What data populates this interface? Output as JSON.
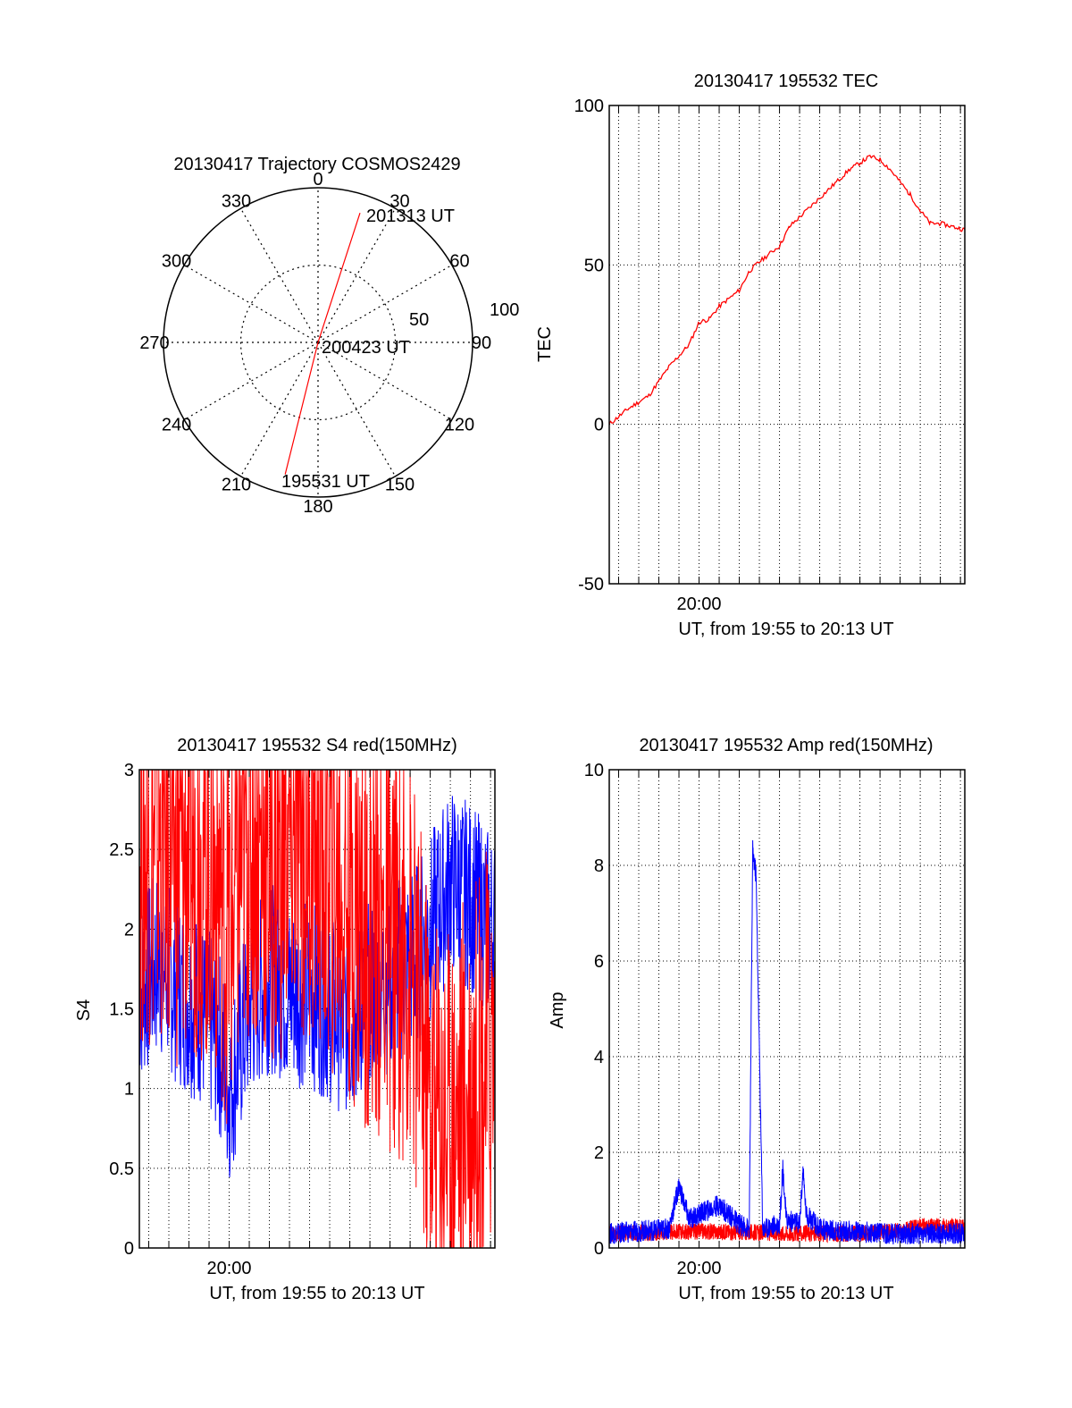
{
  "colors": {
    "red": "#ff0000",
    "blue": "#0000ff",
    "axis": "#000000",
    "grid": "#000000"
  },
  "polar": {
    "title": "20130417 Trajectory COSMOS2429",
    "angle_labels": [
      "0",
      "30",
      "60",
      "90",
      "120",
      "150",
      "180",
      "210",
      "240",
      "270",
      "300",
      "330"
    ],
    "radial_labels": [
      "50",
      "100"
    ],
    "start_label": "195531 UT",
    "mid_label": "200423 UT",
    "end_label": "201313 UT",
    "trajectory": [
      {
        "az": 194,
        "r": 88
      },
      {
        "az": 0,
        "r": 0
      },
      {
        "az": 18,
        "r": 88
      }
    ]
  },
  "chart_data": [
    {
      "id": "tec",
      "type": "line",
      "title": "20130417 195532 TEC",
      "xlabel": "UT, from 19:55 to 20:13 UT",
      "ylabel": "TEC",
      "xlim": [
        "19:55:32",
        "20:13:13"
      ],
      "ylim": [
        -50,
        100
      ],
      "yticks": [
        "100",
        "50",
        "0",
        "-50"
      ],
      "xticks": [
        "20:00"
      ],
      "grid": true,
      "series": [
        {
          "color": "red",
          "x": [
            "19:55:32",
            "19:56:30",
            "19:57:30",
            "19:58:30",
            "19:59:30",
            "20:00:00",
            "20:00:30",
            "20:01:00",
            "20:02:00",
            "20:02:30",
            "20:03:00",
            "20:04:00",
            "20:04:30",
            "20:05:30",
            "20:06:30",
            "20:07:30",
            "20:08:30",
            "20:09:00",
            "20:09:30",
            "20:10:00",
            "20:10:30",
            "20:11:00",
            "20:11:30",
            "20:12:00",
            "20:13:13"
          ],
          "values": [
            0,
            5,
            9,
            18,
            25,
            32,
            33,
            37,
            42,
            48,
            51,
            56,
            62,
            68,
            74,
            80,
            84,
            83,
            80,
            76,
            72,
            67,
            63,
            63,
            61
          ]
        }
      ]
    },
    {
      "id": "s4",
      "type": "line",
      "title": "20130417 195532 S4 red(150MHz)",
      "xlabel": "UT, from 19:55 to 20:13 UT",
      "ylabel": "S4",
      "xlim": [
        "19:55:32",
        "20:13:13"
      ],
      "ylim": [
        0,
        3
      ],
      "yticks": [
        "3",
        "2.5",
        "2",
        "1.5",
        "1",
        "0.5",
        "0"
      ],
      "xticks": [
        "20:00"
      ],
      "grid": true,
      "series": [
        {
          "color": "blue",
          "x": [
            "19:55:32",
            "19:56:30",
            "19:57:30",
            "19:58:30",
            "19:59:30",
            "20:00:00",
            "20:01:00",
            "20:02:00",
            "20:03:00",
            "20:04:00",
            "20:05:00",
            "20:06:00",
            "20:07:00",
            "20:08:00",
            "20:09:00",
            "20:10:00",
            "20:11:00",
            "20:12:00",
            "20:13:13"
          ],
          "values": [
            1.6,
            1.8,
            1.6,
            1.5,
            1.3,
            1.0,
            1.5,
            1.7,
            1.6,
            1.6,
            1.5,
            1.4,
            1.6,
            1.7,
            1.8,
            2.0,
            2.3,
            2.2,
            2.0
          ]
        },
        {
          "color": "red",
          "x": [
            "19:55:32",
            "19:56:30",
            "19:57:30",
            "19:58:30",
            "19:59:30",
            "20:00:00",
            "20:01:00",
            "20:02:00",
            "20:03:00",
            "20:04:00",
            "20:05:00",
            "20:06:00",
            "20:07:00",
            "20:08:00",
            "20:09:00",
            "20:10:00",
            "20:11:00",
            "20:12:00",
            "20:13:13"
          ],
          "values": [
            2.5,
            2.6,
            2.4,
            2.5,
            2.3,
            2.0,
            2.6,
            2.4,
            2.5,
            2.6,
            2.4,
            2.2,
            2.0,
            1.9,
            1.8,
            0.9,
            0.8,
            1.0,
            1.3
          ]
        }
      ]
    },
    {
      "id": "amp",
      "type": "line",
      "title": "20130417 195532 Amp red(150MHz)",
      "xlabel": "UT, from 19:55 to 20:13 UT",
      "ylabel": "Amp",
      "xlim": [
        "19:55:32",
        "20:13:13"
      ],
      "ylim": [
        0,
        10
      ],
      "yticks": [
        "10",
        "8",
        "6",
        "4",
        "2",
        "0"
      ],
      "xticks": [
        "20:00"
      ],
      "grid": true,
      "series": [
        {
          "color": "red",
          "x": [
            "19:55:32",
            "20:00:00",
            "20:05:00",
            "20:08:00",
            "20:10:00",
            "20:11:00",
            "20:12:00",
            "20:13:13"
          ],
          "values": [
            0.3,
            0.35,
            0.3,
            0.3,
            0.35,
            0.45,
            0.45,
            0.45
          ]
        },
        {
          "color": "blue",
          "x": [
            "19:55:32",
            "19:57:00",
            "19:58:30",
            "19:59:00",
            "19:59:30",
            "20:00:00",
            "20:00:30",
            "20:01:00",
            "20:02:00",
            "20:02:30",
            "20:02:40",
            "20:02:50",
            "20:03:10",
            "20:04:00",
            "20:04:10",
            "20:04:20",
            "20:05:00",
            "20:05:10",
            "20:05:20",
            "20:06:00",
            "20:07:00",
            "20:08:00",
            "20:09:00",
            "20:10:00",
            "20:11:00",
            "20:12:00",
            "20:13:13"
          ],
          "values": [
            0.3,
            0.35,
            0.4,
            1.3,
            0.6,
            0.7,
            0.8,
            0.9,
            0.5,
            0.4,
            8.3,
            7.8,
            0.4,
            0.5,
            1.7,
            0.6,
            0.5,
            1.6,
            0.7,
            0.4,
            0.35,
            0.35,
            0.3,
            0.3,
            0.3,
            0.3,
            0.3
          ]
        }
      ]
    }
  ]
}
